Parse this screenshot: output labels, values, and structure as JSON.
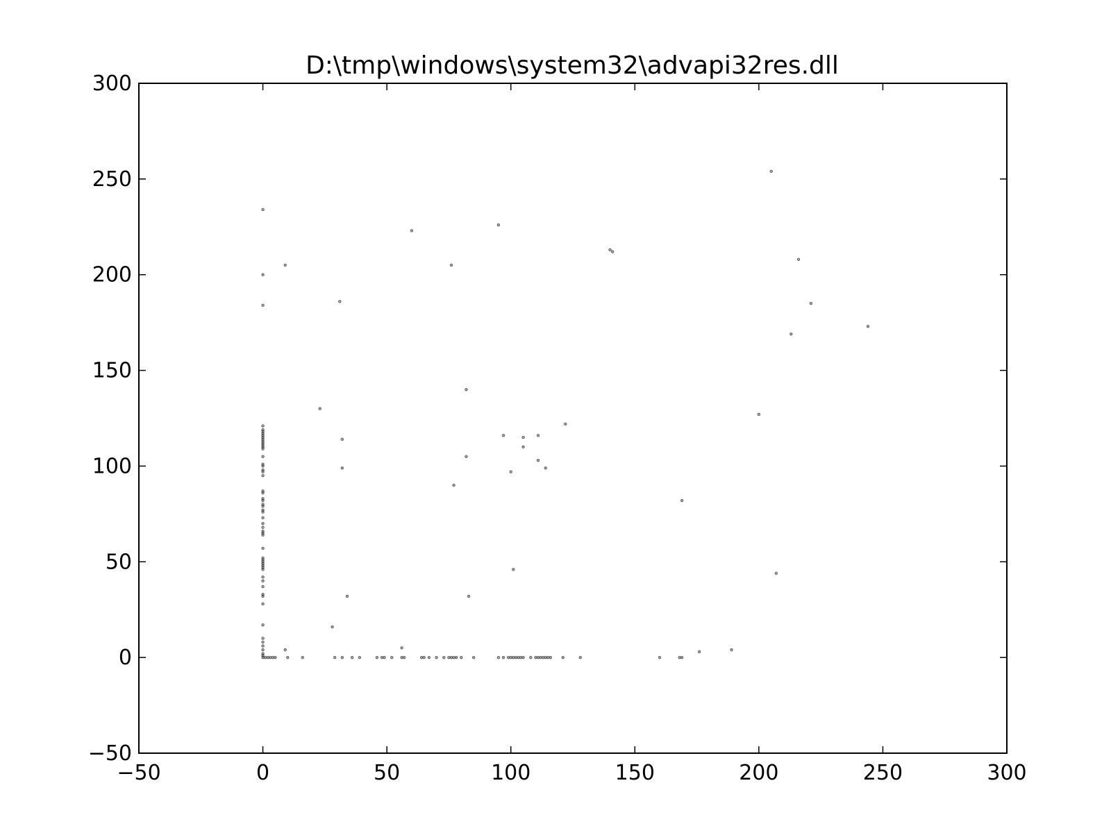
{
  "chart_data": {
    "type": "scatter",
    "title": "D:\\tmp\\windows\\system32\\advapi32res.dll",
    "xlabel": "",
    "ylabel": "",
    "xlim": [
      -50,
      300
    ],
    "ylim": [
      -50,
      300
    ],
    "x_ticks": [
      -50,
      0,
      50,
      100,
      150,
      200,
      250,
      300
    ],
    "y_ticks": [
      -50,
      0,
      50,
      100,
      150,
      200,
      250,
      300
    ],
    "x_tick_labels": [
      "−50",
      "0",
      "50",
      "100",
      "150",
      "200",
      "250",
      "300"
    ],
    "y_tick_labels": [
      "−50",
      "0",
      "50",
      "100",
      "150",
      "200",
      "250",
      "300"
    ],
    "grid": false,
    "legend": "none",
    "marker_color": "#000000",
    "points": [
      [
        0,
        234
      ],
      [
        0,
        200
      ],
      [
        0,
        184
      ],
      [
        0,
        121
      ],
      [
        0,
        119
      ],
      [
        0,
        118
      ],
      [
        0,
        117
      ],
      [
        0,
        116
      ],
      [
        0,
        115
      ],
      [
        0,
        114
      ],
      [
        0,
        113
      ],
      [
        0,
        112
      ],
      [
        0,
        111
      ],
      [
        0,
        110
      ],
      [
        0,
        109
      ],
      [
        0,
        105
      ],
      [
        0,
        101
      ],
      [
        0,
        100
      ],
      [
        0,
        98
      ],
      [
        0,
        97
      ],
      [
        0,
        95
      ],
      [
        0,
        87
      ],
      [
        0,
        86
      ],
      [
        0,
        83
      ],
      [
        0,
        82
      ],
      [
        0,
        80
      ],
      [
        0,
        79
      ],
      [
        0,
        77
      ],
      [
        0,
        76
      ],
      [
        0,
        73
      ],
      [
        0,
        70
      ],
      [
        0,
        68
      ],
      [
        0,
        66
      ],
      [
        0,
        65
      ],
      [
        0,
        64
      ],
      [
        0,
        57
      ],
      [
        0,
        52
      ],
      [
        0,
        51
      ],
      [
        0,
        50
      ],
      [
        0,
        49
      ],
      [
        0,
        48
      ],
      [
        0,
        47
      ],
      [
        0,
        46
      ],
      [
        0,
        42
      ],
      [
        0,
        40
      ],
      [
        0,
        37
      ],
      [
        0,
        33
      ],
      [
        0,
        32
      ],
      [
        0,
        28
      ],
      [
        0,
        17
      ],
      [
        0,
        10
      ],
      [
        0,
        8
      ],
      [
        0,
        6
      ],
      [
        0,
        4
      ],
      [
        0,
        2
      ],
      [
        0,
        1
      ],
      [
        0,
        0
      ],
      [
        1,
        0
      ],
      [
        2,
        0
      ],
      [
        3,
        0
      ],
      [
        4,
        0
      ],
      [
        5,
        0
      ],
      [
        9,
        4
      ],
      [
        9,
        205
      ],
      [
        10,
        0
      ],
      [
        16,
        0
      ],
      [
        23,
        130
      ],
      [
        28,
        16
      ],
      [
        29,
        0
      ],
      [
        31,
        186
      ],
      [
        32,
        114
      ],
      [
        32,
        99
      ],
      [
        32,
        0
      ],
      [
        34,
        32
      ],
      [
        36,
        0
      ],
      [
        39,
        0
      ],
      [
        46,
        0
      ],
      [
        48,
        0
      ],
      [
        49,
        0
      ],
      [
        52,
        0
      ],
      [
        56,
        5
      ],
      [
        56,
        0
      ],
      [
        57,
        0
      ],
      [
        60,
        223
      ],
      [
        64,
        0
      ],
      [
        65,
        0
      ],
      [
        67,
        0
      ],
      [
        70,
        0
      ],
      [
        73,
        0
      ],
      [
        75,
        0
      ],
      [
        76,
        205
      ],
      [
        76,
        0
      ],
      [
        77,
        90
      ],
      [
        77,
        0
      ],
      [
        78,
        0
      ],
      [
        80,
        0
      ],
      [
        82,
        140
      ],
      [
        82,
        105
      ],
      [
        83,
        32
      ],
      [
        85,
        0
      ],
      [
        95,
        226
      ],
      [
        95,
        0
      ],
      [
        97,
        116
      ],
      [
        97,
        0
      ],
      [
        99,
        0
      ],
      [
        100,
        97
      ],
      [
        100,
        0
      ],
      [
        101,
        46
      ],
      [
        101,
        0
      ],
      [
        102,
        0
      ],
      [
        103,
        0
      ],
      [
        104,
        0
      ],
      [
        105,
        115
      ],
      [
        105,
        110
      ],
      [
        105,
        0
      ],
      [
        108,
        0
      ],
      [
        110,
        0
      ],
      [
        111,
        116
      ],
      [
        111,
        103
      ],
      [
        111,
        0
      ],
      [
        112,
        0
      ],
      [
        113,
        0
      ],
      [
        114,
        99
      ],
      [
        114,
        0
      ],
      [
        115,
        0
      ],
      [
        116,
        0
      ],
      [
        121,
        0
      ],
      [
        122,
        122
      ],
      [
        128,
        0
      ],
      [
        140,
        213
      ],
      [
        141,
        212
      ],
      [
        160,
        0
      ],
      [
        168,
        0
      ],
      [
        169,
        82
      ],
      [
        169,
        0
      ],
      [
        176,
        3
      ],
      [
        189,
        4
      ],
      [
        200,
        127
      ],
      [
        205,
        254
      ],
      [
        207,
        44
      ],
      [
        213,
        169
      ],
      [
        216,
        208
      ],
      [
        221,
        185
      ],
      [
        244,
        173
      ]
    ]
  }
}
